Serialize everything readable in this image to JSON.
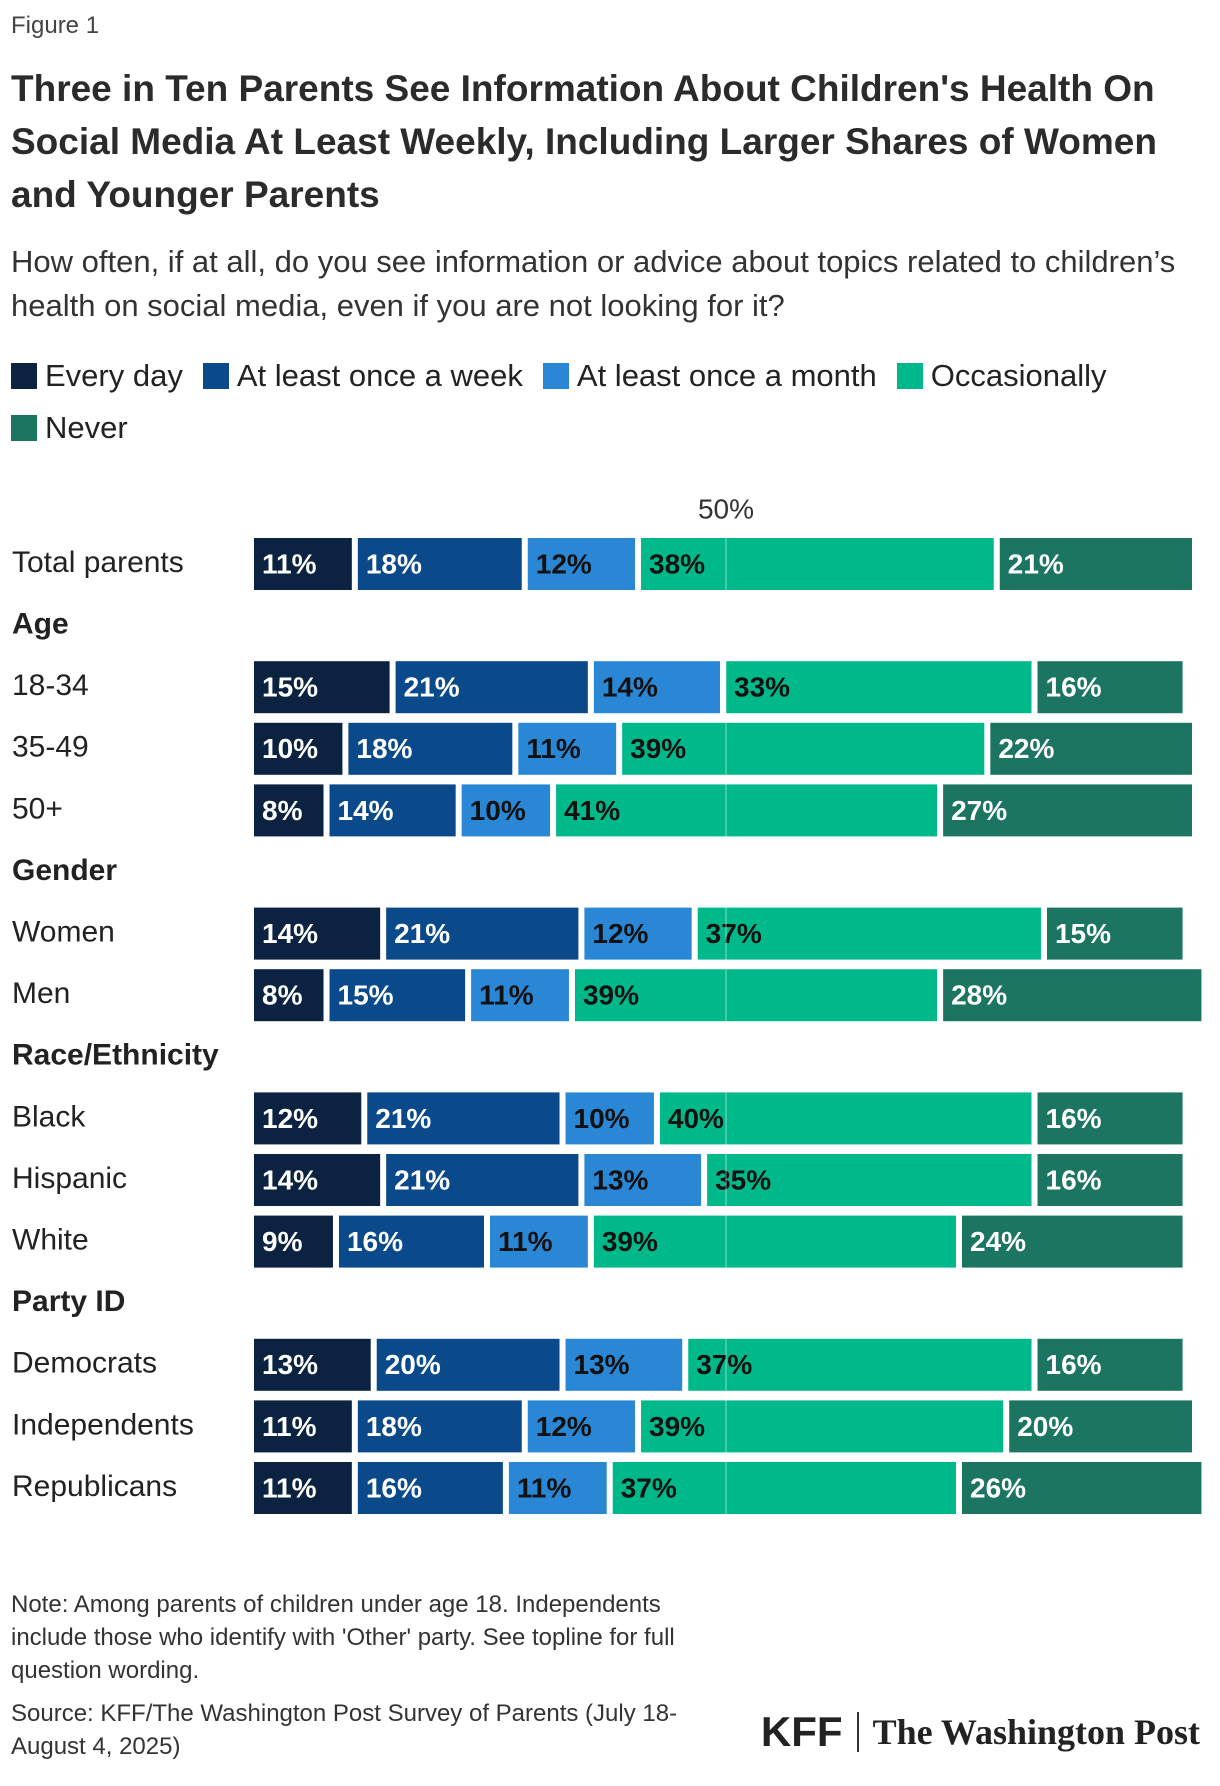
{
  "chart_data": {
    "type": "stacked_bar",
    "figure_label": "Figure 1",
    "title": "Three in Ten Parents See Information About Children's Health On Social Media At Least Weekly, Including Larger Shares of Women and Younger Parents",
    "subtitle": "How often, if at all, do you see information or advice about topics related to children’s health on social media, even if you are not looking for it?",
    "categories": [
      "Total parents",
      "Age",
      "18-34",
      "35-49",
      "50+",
      "Gender",
      "Women",
      "Men",
      "Race/Ethnicity",
      "Black",
      "Hispanic",
      "White",
      "Party ID",
      "Democrats",
      "Independents",
      "Republicans"
    ],
    "series": [
      {
        "name": "Every day",
        "color": "#0b2340",
        "values": [
          11,
          null,
          15,
          10,
          8,
          null,
          14,
          8,
          null,
          12,
          14,
          9,
          null,
          13,
          11,
          11
        ],
        "value_labels": [
          "11%",
          null,
          "15%",
          "10%",
          "8%",
          null,
          "14%",
          "8%",
          null,
          "12%",
          "14%",
          "9%",
          null,
          "13%",
          "11%",
          "11%"
        ]
      },
      {
        "name": "At least once a week",
        "color": "#0a4a8a",
        "values": [
          18,
          null,
          21,
          18,
          14,
          null,
          21,
          15,
          null,
          21,
          21,
          16,
          null,
          20,
          18,
          16
        ],
        "value_labels": [
          "18%",
          null,
          "21%",
          "18%",
          "14%",
          null,
          "21%",
          "15%",
          null,
          "21%",
          "21%",
          "16%",
          null,
          "20%",
          "18%",
          "16%"
        ]
      },
      {
        "name": "At least once a month",
        "color": "#2a87d6",
        "values": [
          12,
          null,
          14,
          11,
          10,
          null,
          12,
          11,
          null,
          10,
          13,
          11,
          null,
          13,
          12,
          11
        ],
        "value_labels": [
          "12%",
          null,
          "14%",
          "11%",
          "10%",
          null,
          "12%",
          "11%",
          null,
          "10%",
          "13%",
          "11%",
          null,
          "13%",
          "12%",
          "11%"
        ]
      },
      {
        "name": "Occasionally",
        "color": "#00b98a",
        "values": [
          38,
          null,
          33,
          39,
          41,
          null,
          37,
          39,
          null,
          40,
          35,
          39,
          null,
          37,
          39,
          37
        ],
        "value_labels": [
          "38%",
          null,
          "33%",
          "39%",
          "41%",
          null,
          "37%",
          "39%",
          null,
          "40%",
          "35%",
          "39%",
          null,
          "37%",
          "39%",
          "37%"
        ]
      },
      {
        "name": "Never",
        "color": "#1b7561",
        "values": [
          21,
          null,
          16,
          22,
          27,
          null,
          15,
          28,
          null,
          16,
          16,
          24,
          null,
          16,
          20,
          26
        ],
        "value_labels": [
          "21%",
          null,
          "16%",
          "22%",
          "27%",
          null,
          "15%",
          "28%",
          null,
          "16%",
          "16%",
          "24%",
          null,
          "16%",
          "20%",
          "26%"
        ]
      }
    ],
    "xlim": [
      0,
      100
    ],
    "xticks": [
      {
        "value": 50,
        "label": "50%"
      }
    ],
    "grid": true,
    "notes": [
      "Note: Among parents of children under age 18. Independents include those who identify with 'Other' party. See topline for full question wording.",
      "Source: KFF/The Washington Post Survey of Parents (July 18-August 4, 2025)"
    ],
    "logos": [
      "KFF",
      "The Washington Post"
    ]
  }
}
